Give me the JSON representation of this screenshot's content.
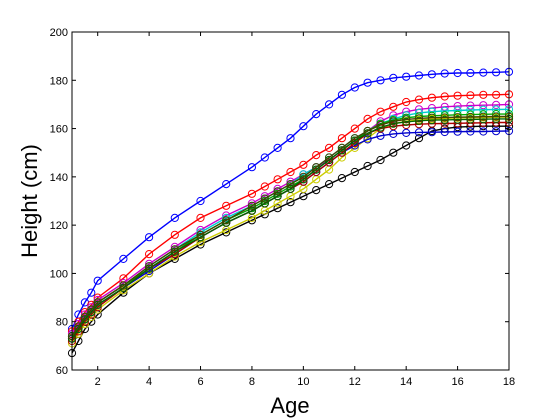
{
  "chart_data": {
    "type": "line",
    "title": "",
    "xlabel": "Age",
    "ylabel": "Height (cm)",
    "xlim": [
      1,
      18
    ],
    "ylim": [
      60,
      200
    ],
    "xticks": [
      2,
      4,
      6,
      8,
      10,
      12,
      14,
      16,
      18
    ],
    "yticks": [
      60,
      80,
      100,
      120,
      140,
      160,
      180,
      200
    ],
    "grid": false,
    "legend": "none",
    "markers": "open circle",
    "x": [
      1,
      1.25,
      1.5,
      1.75,
      2,
      3,
      4,
      5,
      6,
      7,
      8,
      8.5,
      9,
      9.5,
      10,
      10.5,
      11,
      11.5,
      12,
      12.5,
      13,
      13.5,
      14,
      14.5,
      15,
      15.5,
      16,
      16.5,
      17,
      17.5,
      18
    ],
    "series": [
      {
        "color": "#0000ff",
        "values": [
          77,
          83,
          88,
          92,
          97,
          106,
          115,
          123,
          130,
          137,
          144,
          148,
          152,
          156,
          161,
          166,
          170,
          174,
          177,
          179,
          180,
          181,
          181.5,
          182,
          182.5,
          182.8,
          183,
          183,
          183.2,
          183.3,
          183.5
        ]
      },
      {
        "color": "#ff0000",
        "values": [
          76,
          80,
          84,
          87,
          90,
          98,
          108,
          116,
          123,
          128,
          133,
          136,
          139,
          142,
          145,
          149,
          152,
          156,
          160,
          164,
          167,
          169,
          171,
          172,
          172.8,
          173.3,
          173.6,
          173.8,
          174,
          174,
          174.2
        ]
      },
      {
        "color": "#cc00cc",
        "values": [
          75,
          79,
          83,
          86,
          89,
          96,
          104,
          111,
          118,
          124,
          129,
          132,
          135,
          138,
          141,
          144,
          147,
          151,
          155,
          159,
          163,
          165.5,
          167,
          168,
          168.5,
          169,
          169.3,
          169.5,
          169.7,
          169.8,
          170
        ]
      },
      {
        "color": "#00cccc",
        "values": [
          74,
          78,
          82,
          85,
          88,
          95,
          103,
          110,
          117,
          123,
          128,
          131,
          134,
          137,
          141,
          144,
          148,
          152,
          156,
          159,
          162,
          164,
          165.5,
          166.5,
          167,
          167.3,
          167.5,
          167.7,
          167.8,
          167.9,
          168
        ]
      },
      {
        "color": "#00aa00",
        "values": [
          74,
          78,
          82,
          85,
          88,
          95,
          102,
          109,
          116,
          122,
          127,
          130,
          133,
          136,
          139,
          143,
          147,
          151,
          155,
          159,
          162,
          163.5,
          164.5,
          165,
          165.3,
          165.5,
          165.7,
          165.8,
          165.9,
          166,
          166
        ]
      },
      {
        "color": "#000000",
        "values": [
          67,
          72,
          77,
          80,
          83,
          92,
          100,
          106,
          112,
          117,
          122,
          124.5,
          127,
          129.5,
          132,
          134.5,
          137,
          139.5,
          142,
          144.5,
          147,
          150,
          153,
          156,
          159,
          160,
          160.6,
          160.8,
          161,
          161,
          161
        ]
      },
      {
        "color": "#cccc00",
        "values": [
          71,
          75,
          79,
          82,
          85,
          93,
          100,
          107,
          113,
          118,
          123,
          126,
          129,
          132,
          135,
          139,
          143,
          148,
          152,
          156,
          160,
          162,
          163,
          163.6,
          164,
          164.2,
          164.4,
          164.5,
          164.6,
          164.7,
          164.8
        ]
      },
      {
        "color": "#0000cc",
        "values": [
          73,
          77,
          81,
          84,
          87,
          94,
          101,
          108,
          115,
          121,
          126,
          129,
          132,
          135,
          138,
          142,
          146,
          150,
          153,
          155.5,
          157,
          157.8,
          158.2,
          158.4,
          158.5,
          158.6,
          158.7,
          158.8,
          158.8,
          158.9,
          159
        ]
      },
      {
        "color": "#aa0000",
        "values": [
          72,
          76,
          80,
          83,
          86,
          94,
          102,
          108,
          115,
          121,
          126,
          129,
          132,
          135,
          138,
          142,
          146,
          150,
          154,
          158,
          160,
          161,
          161.5,
          161.8,
          162,
          162.1,
          162.2,
          162.3,
          162.4,
          162.5,
          162.5
        ]
      },
      {
        "color": "#006600",
        "values": [
          73,
          77,
          81,
          84,
          87,
          94,
          102,
          109,
          115,
          121,
          126,
          129,
          132,
          135,
          139,
          143,
          147,
          151,
          155,
          158,
          160.5,
          162,
          162.8,
          163.2,
          163.5,
          163.6,
          163.7,
          163.8,
          163.9,
          164,
          164
        ]
      },
      {
        "color": "#444400",
        "values": [
          74,
          78,
          82,
          85,
          88,
          95,
          103,
          110,
          116,
          122,
          128,
          131,
          134,
          137,
          140,
          144,
          148,
          152,
          156,
          159,
          161.5,
          163,
          163.8,
          164.2,
          164.5,
          164.6,
          164.7,
          164.8,
          164.9,
          165,
          165
        ]
      }
    ]
  }
}
